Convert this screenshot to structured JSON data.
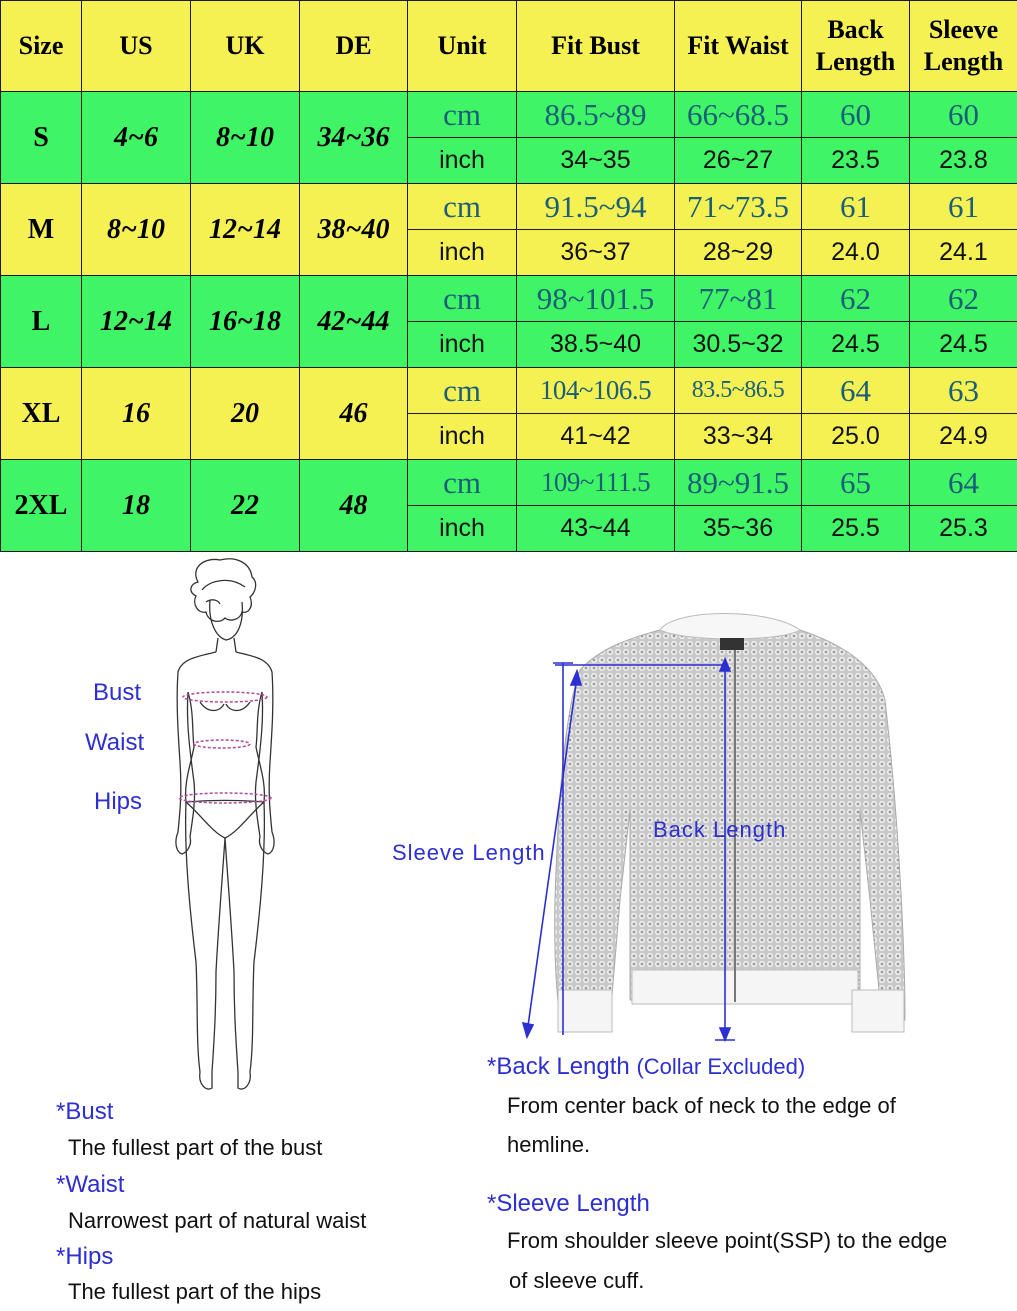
{
  "table": {
    "headers": [
      "Size",
      "US",
      "UK",
      "DE",
      "Unit",
      "Fit Bust",
      "Fit Waist",
      "Back Length",
      "Sleeve Length"
    ],
    "rows": [
      {
        "size": "S",
        "us": "4~6",
        "uk": "8~10",
        "de": "34~36",
        "band": "green",
        "cm": {
          "unit": "cm",
          "bust": "86.5~89",
          "waist": "66~68.5",
          "back": "60",
          "sleeve": "60"
        },
        "inch": {
          "unit": "inch",
          "bust": "34~35",
          "waist": "26~27",
          "back": "23.5",
          "sleeve": "23.8"
        }
      },
      {
        "size": "M",
        "us": "8~10",
        "uk": "12~14",
        "de": "38~40",
        "band": "yellow",
        "cm": {
          "unit": "cm",
          "bust": "91.5~94",
          "waist": "71~73.5",
          "back": "61",
          "sleeve": "61"
        },
        "inch": {
          "unit": "inch",
          "bust": "36~37",
          "waist": "28~29",
          "back": "24.0",
          "sleeve": "24.1"
        }
      },
      {
        "size": "L",
        "us": "12~14",
        "uk": "16~18",
        "de": "42~44",
        "band": "green",
        "cm": {
          "unit": "cm",
          "bust": "98~101.5",
          "waist": "77~81",
          "back": "62",
          "sleeve": "62"
        },
        "inch": {
          "unit": "inch",
          "bust": "38.5~40",
          "waist": "30.5~32",
          "back": "24.5",
          "sleeve": "24.5"
        }
      },
      {
        "size": "XL",
        "us": "16",
        "uk": "20",
        "de": "46",
        "band": "yellow",
        "cm": {
          "unit": "cm",
          "bust": "104~106.5",
          "waist": "83.5~86.5",
          "back": "64",
          "sleeve": "63"
        },
        "inch": {
          "unit": "inch",
          "bust": "41~42",
          "waist": "33~34",
          "back": "25.0",
          "sleeve": "24.9"
        }
      },
      {
        "size": "2XL",
        "us": "18",
        "uk": "22",
        "de": "48",
        "band": "green",
        "cm": {
          "unit": "cm",
          "bust": "109~111.5",
          "waist": "89~91.5",
          "back": "65",
          "sleeve": "64"
        },
        "inch": {
          "unit": "inch",
          "bust": "43~44",
          "waist": "35~36",
          "back": "25.5",
          "sleeve": "25.3"
        }
      }
    ]
  },
  "colors": {
    "yellow": "#f6f152",
    "green": "#3ff566",
    "label_blue": "#2d2fd2",
    "cm_text": "#1b5e7a"
  },
  "body_figure": {
    "bust_label": "Bust",
    "waist_label": "Waist",
    "hips_label": "Hips"
  },
  "jacket_figure": {
    "sleeve_label": "Sleeve Length",
    "back_label": "Back Length"
  },
  "definitions": {
    "bust": {
      "title": "*Bust",
      "text": "The fullest part of the bust"
    },
    "waist": {
      "title": "*Waist",
      "text": "Narrowest part of natural waist"
    },
    "hips": {
      "title": "*Hips",
      "text": "The fullest part of the hips"
    },
    "back_length": {
      "title": "*Back Length",
      "note": "(Collar Excluded)",
      "line1": "From center back of neck to the edge of",
      "line2": "hemline."
    },
    "sleeve_length": {
      "title": "*Sleeve Length",
      "line1": "From shoulder sleeve point(SSP) to the edge",
      "line2": "of sleeve cuff."
    }
  }
}
